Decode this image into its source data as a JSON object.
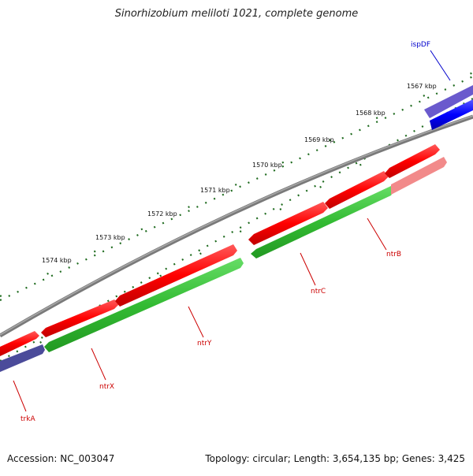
{
  "title": "Sinorhizobium meliloti 1021, complete genome",
  "accession": "Accession: NC_003047",
  "summary": "Topology: circular; Length: 3,654,135 bp; Genes: 3,425",
  "colors": {
    "backbone": "#7a7a7a",
    "forward_gene": "#ff1a1a",
    "reverse_gene": "#33bb33",
    "other_gene": "#1a1aff",
    "tick": "#1f6b1f",
    "label_red": "#cc0000",
    "label_blue": "#0000cc"
  },
  "scale_labels": [
    "1567 kbp",
    "1568 kbp",
    "1569 kbp",
    "1570 kbp",
    "1571 kbp",
    "1572 kbp",
    "1573 kbp",
    "1574 kbp"
  ],
  "gene_labels": [
    "ispDF",
    "ntrB",
    "ntrC",
    "ntrY",
    "ntrX",
    "trkA"
  ]
}
